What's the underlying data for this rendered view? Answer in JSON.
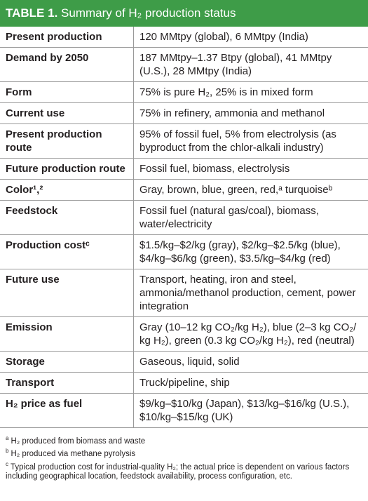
{
  "table": {
    "title_label": "TABLE 1.",
    "title_text": "Summary of H₂ production status",
    "rows": [
      {
        "label": "Present production",
        "value": "120 MMtpy (global), 6 MMtpy (India)"
      },
      {
        "label": "Demand by 2050",
        "value": "187 MMtpy–1.37 Btpy (global), 41 MMtpy (U.S.), 28 MMtpy (India)"
      },
      {
        "label": "Form",
        "value": "75% is pure H₂, 25% is in mixed form"
      },
      {
        "label": "Current use",
        "value": "75% in refinery, ammonia and methanol"
      },
      {
        "label": "Present production route",
        "value": "95% of fossil fuel, 5% from electrolysis (as byproduct from the chlor-alkali industry)"
      },
      {
        "label": "Future production route",
        "value": "Fossil fuel, biomass, electrolysis"
      },
      {
        "label": "Color¹,²",
        "value": "Gray, brown, blue, green, red,ᵃ turquoiseᵇ"
      },
      {
        "label": "Feedstock",
        "value": "Fossil fuel (natural gas/coal), biomass, water/electricity"
      },
      {
        "label": "Production costᶜ",
        "value": "$1.5/kg–$2/kg (gray), $2/kg–$2.5/kg (blue), $4/kg–$6/kg (green), $3.5/kg–$4/kg (red)"
      },
      {
        "label": "Future use",
        "value": "Transport, heating, iron and steel, ammonia/methanol production, cement, power integration"
      },
      {
        "label": "Emission",
        "value": "Gray (10–12 kg CO₂/kg H₂), blue (2–3 kg CO₂/ kg H₂), green (0.3 kg CO₂/kg H₂), red (neutral)"
      },
      {
        "label": "Storage",
        "value": "Gaseous, liquid, solid"
      },
      {
        "label": "Transport",
        "value": "Truck/pipeline, ship"
      },
      {
        "label": "H₂ price as fuel",
        "value": "$9/kg–$10/kg (Japan), $13/kg–$16/kg (U.S.), $10/kg–$15/kg (UK)"
      }
    ],
    "footnotes": [
      {
        "mark": "a",
        "text": "H₂ produced from biomass and waste"
      },
      {
        "mark": "b",
        "text": "H₂ produced via methane pyrolysis"
      },
      {
        "mark": "c",
        "text": "Typical production cost for industrial-quality H₂; the actual price is dependent on various factors including geographical location, feedstock availability, process configuration, etc."
      }
    ]
  }
}
